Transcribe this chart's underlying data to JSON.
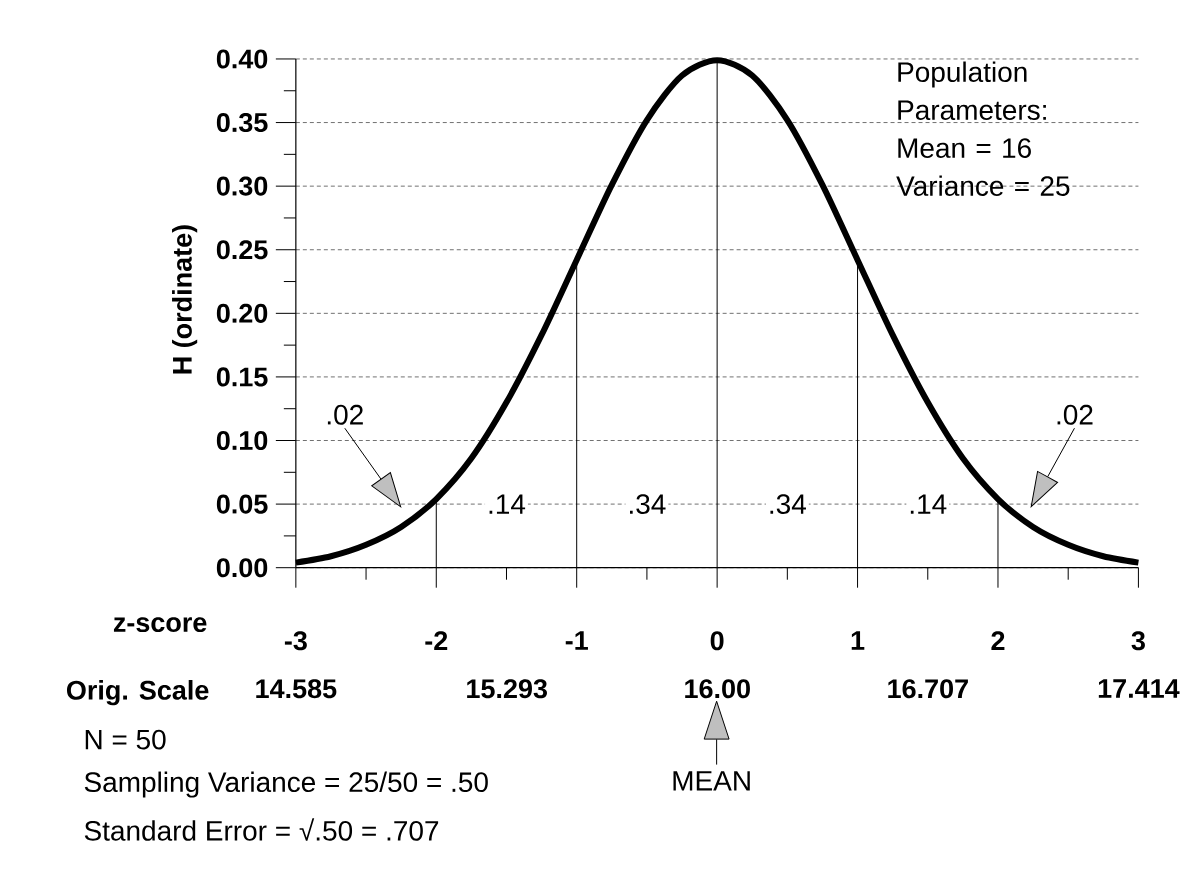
{
  "chart_data": {
    "type": "line",
    "x": [
      -3,
      -2.75,
      -2.5,
      -2.25,
      -2,
      -1.75,
      -1.5,
      -1.25,
      -1,
      -0.75,
      -0.5,
      -0.25,
      0,
      0.25,
      0.5,
      0.75,
      1,
      1.25,
      1.5,
      1.75,
      2,
      2.25,
      2.5,
      2.75,
      3
    ],
    "values": [
      0.004,
      0.009,
      0.018,
      0.032,
      0.054,
      0.086,
      0.13,
      0.183,
      0.242,
      0.301,
      0.352,
      0.387,
      0.399,
      0.387,
      0.352,
      0.301,
      0.242,
      0.183,
      0.13,
      0.086,
      0.054,
      0.032,
      0.018,
      0.009,
      0.004
    ],
    "color": "#000000",
    "marker": "none",
    "line_style": "solid",
    "xlabel": "z-score",
    "ylabel": "H  (ordinate)",
    "x2label": "Orig. Scale",
    "xlim": [
      -3,
      3
    ],
    "xticks": [
      -3,
      -2,
      -1,
      0,
      1,
      2,
      3
    ],
    "x2lim": [
      14.585,
      17.414
    ],
    "x2ticks": [
      14.585,
      15.293,
      {
        "value": 16,
        "label": "16.00"
      },
      16.707,
      17.414
    ],
    "ylim": [
      0,
      0.4
    ],
    "yticks": [
      {
        "value": 0,
        "label": "0.00"
      },
      {
        "value": 0.05,
        "label": "0.05"
      },
      {
        "value": 0.1,
        "label": "0.10"
      },
      {
        "value": 0.15,
        "label": "0.15"
      },
      {
        "value": 0.2,
        "label": "0.20"
      },
      {
        "value": 0.25,
        "label": "0.25"
      },
      {
        "value": 0.3,
        "label": "0.30"
      },
      {
        "value": 0.35,
        "label": "0.35"
      },
      {
        "value": 0.4,
        "label": "0.40"
      }
    ],
    "grid": "y",
    "ref_lines": [
      {
        "axis": "x",
        "value": -2
      },
      {
        "axis": "x",
        "value": -1
      },
      {
        "axis": "x",
        "value": 0
      },
      {
        "axis": "x",
        "value": 1
      },
      {
        "axis": "x",
        "value": 2
      }
    ],
    "annotations": [
      "Population Parameters: Mean = 16 Variance = 25",
      "N = 50",
      "Sampling Variance = 25/50 = .50",
      "Standard Error = √.50 = .707",
      "MEAN",
      {
        "text": ".14",
        "x": -1.5,
        "y": 0.05
      },
      {
        "text": ".34",
        "x": -0.5,
        "y": 0.05
      },
      {
        "text": ".34",
        "x": 0.5,
        "y": 0.05
      },
      {
        "text": ".14",
        "x": 1.5,
        "y": 0.05
      },
      ".02",
      ".02"
    ]
  }
}
